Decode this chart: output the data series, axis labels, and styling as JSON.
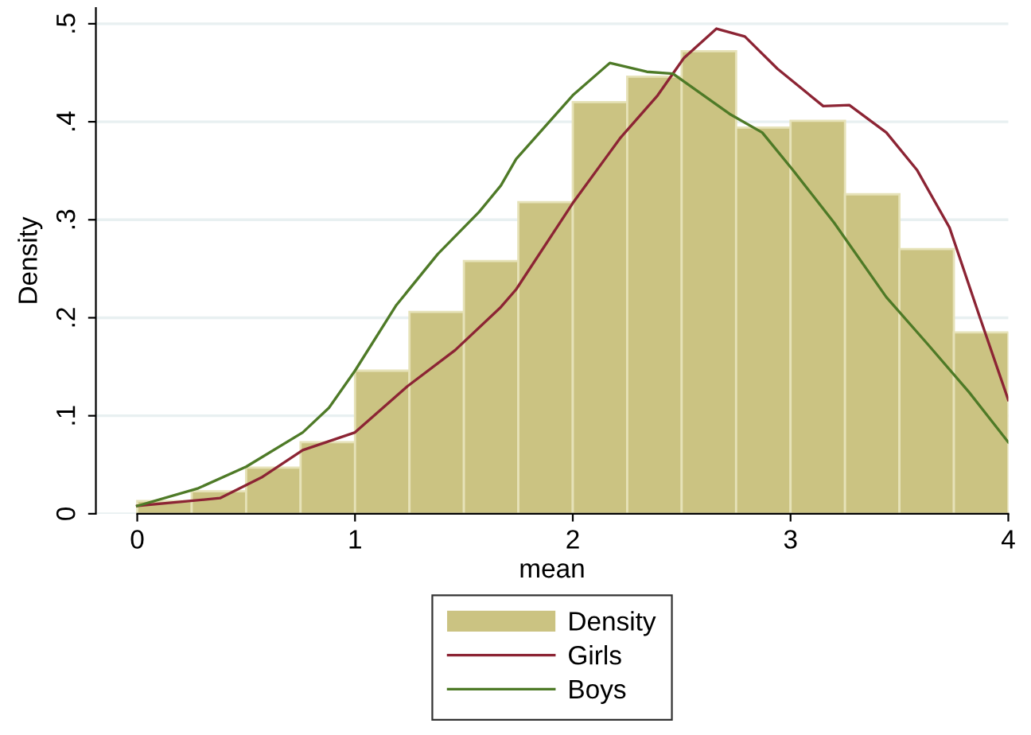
{
  "chart_data": {
    "type": "histogram",
    "xlabel": "mean",
    "ylabel": "Density",
    "series": [
      {
        "name": "Density",
        "type": "histogram",
        "color": "#cbc382",
        "bins": [
          0,
          0.25,
          0.5,
          0.75,
          1.0,
          1.25,
          1.5,
          1.75,
          2.0,
          2.25,
          2.5,
          2.75,
          3.0,
          3.25,
          3.5,
          3.75,
          4.0
        ],
        "values": [
          0.013,
          0.023,
          0.047,
          0.073,
          0.146,
          0.206,
          0.258,
          0.318,
          0.42,
          0.446,
          0.472,
          0.394,
          0.401,
          0.326,
          0.27,
          0.185
        ]
      },
      {
        "name": "Girls",
        "type": "line",
        "color": "#8c2434",
        "x": [
          0,
          0.38,
          0.57,
          0.76,
          1.0,
          1.24,
          1.46,
          1.67,
          1.74,
          2.0,
          2.22,
          2.39,
          2.51,
          2.66,
          2.79,
          2.94,
          3.15,
          3.27,
          3.44,
          3.58,
          3.73,
          3.87,
          4.0
        ],
        "values": [
          0.008,
          0.016,
          0.037,
          0.065,
          0.083,
          0.13,
          0.167,
          0.211,
          0.229,
          0.317,
          0.384,
          0.427,
          0.465,
          0.495,
          0.487,
          0.454,
          0.416,
          0.417,
          0.389,
          0.351,
          0.292,
          0.2,
          0.116
        ]
      },
      {
        "name": "Boys",
        "type": "line",
        "color": "#4e7a27",
        "x": [
          0,
          0.28,
          0.5,
          0.76,
          0.88,
          1.0,
          1.19,
          1.38,
          1.57,
          1.67,
          1.74,
          2.0,
          2.17,
          2.34,
          2.46,
          2.72,
          2.87,
          3.01,
          3.2,
          3.44,
          3.63,
          3.82,
          4.0
        ],
        "values": [
          0.008,
          0.026,
          0.048,
          0.083,
          0.108,
          0.146,
          0.213,
          0.265,
          0.308,
          0.335,
          0.362,
          0.427,
          0.46,
          0.451,
          0.449,
          0.408,
          0.389,
          0.351,
          0.297,
          0.221,
          0.173,
          0.124,
          0.073
        ]
      }
    ],
    "xlim": [
      -0.19,
      4.0
    ],
    "ylim": [
      0,
      0.516
    ],
    "xticks": [
      0,
      1,
      2,
      3,
      4
    ],
    "yticks": [
      0,
      {
        "value": 0.1,
        "label": ".1"
      },
      {
        "value": 0.2,
        "label": ".2"
      },
      {
        "value": 0.3,
        "label": ".3"
      },
      {
        "value": 0.4,
        "label": ".4"
      },
      {
        "value": 0.5,
        "label": ".5"
      }
    ],
    "grid": "y",
    "legend": "bottom"
  }
}
